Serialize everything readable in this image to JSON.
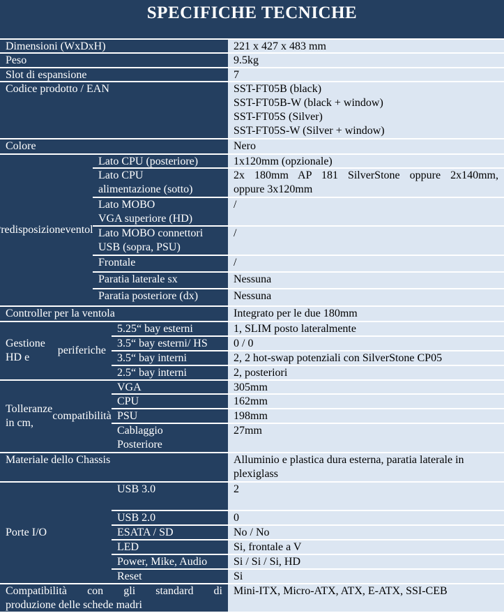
{
  "title": "SPECIFICHE TECNICHE",
  "colors": {
    "dark": "#243F60",
    "light": "#DCE6F2",
    "border": "#FFFFFF"
  },
  "rows": [
    {
      "label": "Dimensioni (WxDxH)",
      "value": "221 x 427 x 483 mm"
    },
    {
      "label": "Peso",
      "value": "9.5kg"
    },
    {
      "label": "Slot di espansione",
      "value": "7"
    },
    {
      "label": "Codice prodotto / EAN",
      "value": [
        "SST-FT05B (black)",
        "SST-FT05B-W (black + window)",
        "SST-FT05S (Silver)",
        "SST-FT05S-W (Silver + window)"
      ]
    },
    {
      "label": "Colore",
      "value": "Nero"
    },
    {
      "label": [
        "Predisposizione",
        "ventole"
      ],
      "items": [
        {
          "label": "Lato CPU (posteriore)",
          "value": "1x120mm (opzionale)"
        },
        {
          "label": [
            "Lato CPU",
            "alimentazione (sotto)"
          ],
          "value": [
            "2x 180mm AP 181 SilverStone oppure 2x140mm,",
            "oppure 3x120mm"
          ]
        },
        {
          "label": [
            "Lato MOBO",
            "VGA superiore (HD)"
          ],
          "value": "/"
        },
        {
          "label": [
            "Lato MOBO connettori",
            "USB (sopra, PSU)"
          ],
          "value": "/"
        },
        {
          "label": "Frontale",
          "value": "/"
        },
        {
          "label": "Paratia laterale sx",
          "value": "Nessuna"
        },
        {
          "label": "Paratia posteriore (dx)",
          "value": "Nessuna"
        }
      ]
    },
    {
      "label": "Controller per la ventola",
      "value": "Integrato per le due 180mm"
    },
    {
      "label": [
        "Gestione HD e",
        "periferiche"
      ],
      "items": [
        {
          "label": "5.25“ bay esterni",
          "value": "1, SLIM posto lateralmente"
        },
        {
          "label": "3.5“ bay esterni/ HS",
          "value": "0 / 0"
        },
        {
          "label": "3.5“ bay interni",
          "value": "2, 2 hot-swap potenziali con SilverStone CP05"
        },
        {
          "label": "2.5“ bay interni",
          "value": "2, posteriori"
        }
      ]
    },
    {
      "label": [
        "Tolleranze in cm,",
        "compatibilità"
      ],
      "items": [
        {
          "label": "VGA",
          "value": "305mm"
        },
        {
          "label": "CPU",
          "value": "162mm"
        },
        {
          "label": "PSU",
          "value": "198mm"
        },
        {
          "label": [
            "Cablaggio",
            "Posteriore"
          ],
          "value": "27mm"
        }
      ]
    },
    {
      "label": "Materiale dello Chassis",
      "value": [
        "Alluminio e plastica dura esterna, paratia laterale in",
        "plexiglass"
      ]
    },
    {
      "label": "Porte I/O",
      "items": [
        {
          "label": "USB 3.0",
          "value": "2"
        },
        {
          "label": "USB 2.0",
          "value": "0"
        },
        {
          "label": "ESATA / SD",
          "value": "No / No"
        },
        {
          "label": "LED",
          "value": "Si, frontale a V"
        },
        {
          "label": "Power, Mike, Audio",
          "value": "Si / Si / Si, HD"
        },
        {
          "label": "Reset",
          "value": "Si"
        }
      ]
    },
    {
      "label": [
        "Compatibilità con gli standard di",
        "produzione delle schede madri"
      ],
      "value": "Mini-ITX, Micro-ATX, ATX, E-ATX, SSI-CEB"
    }
  ]
}
